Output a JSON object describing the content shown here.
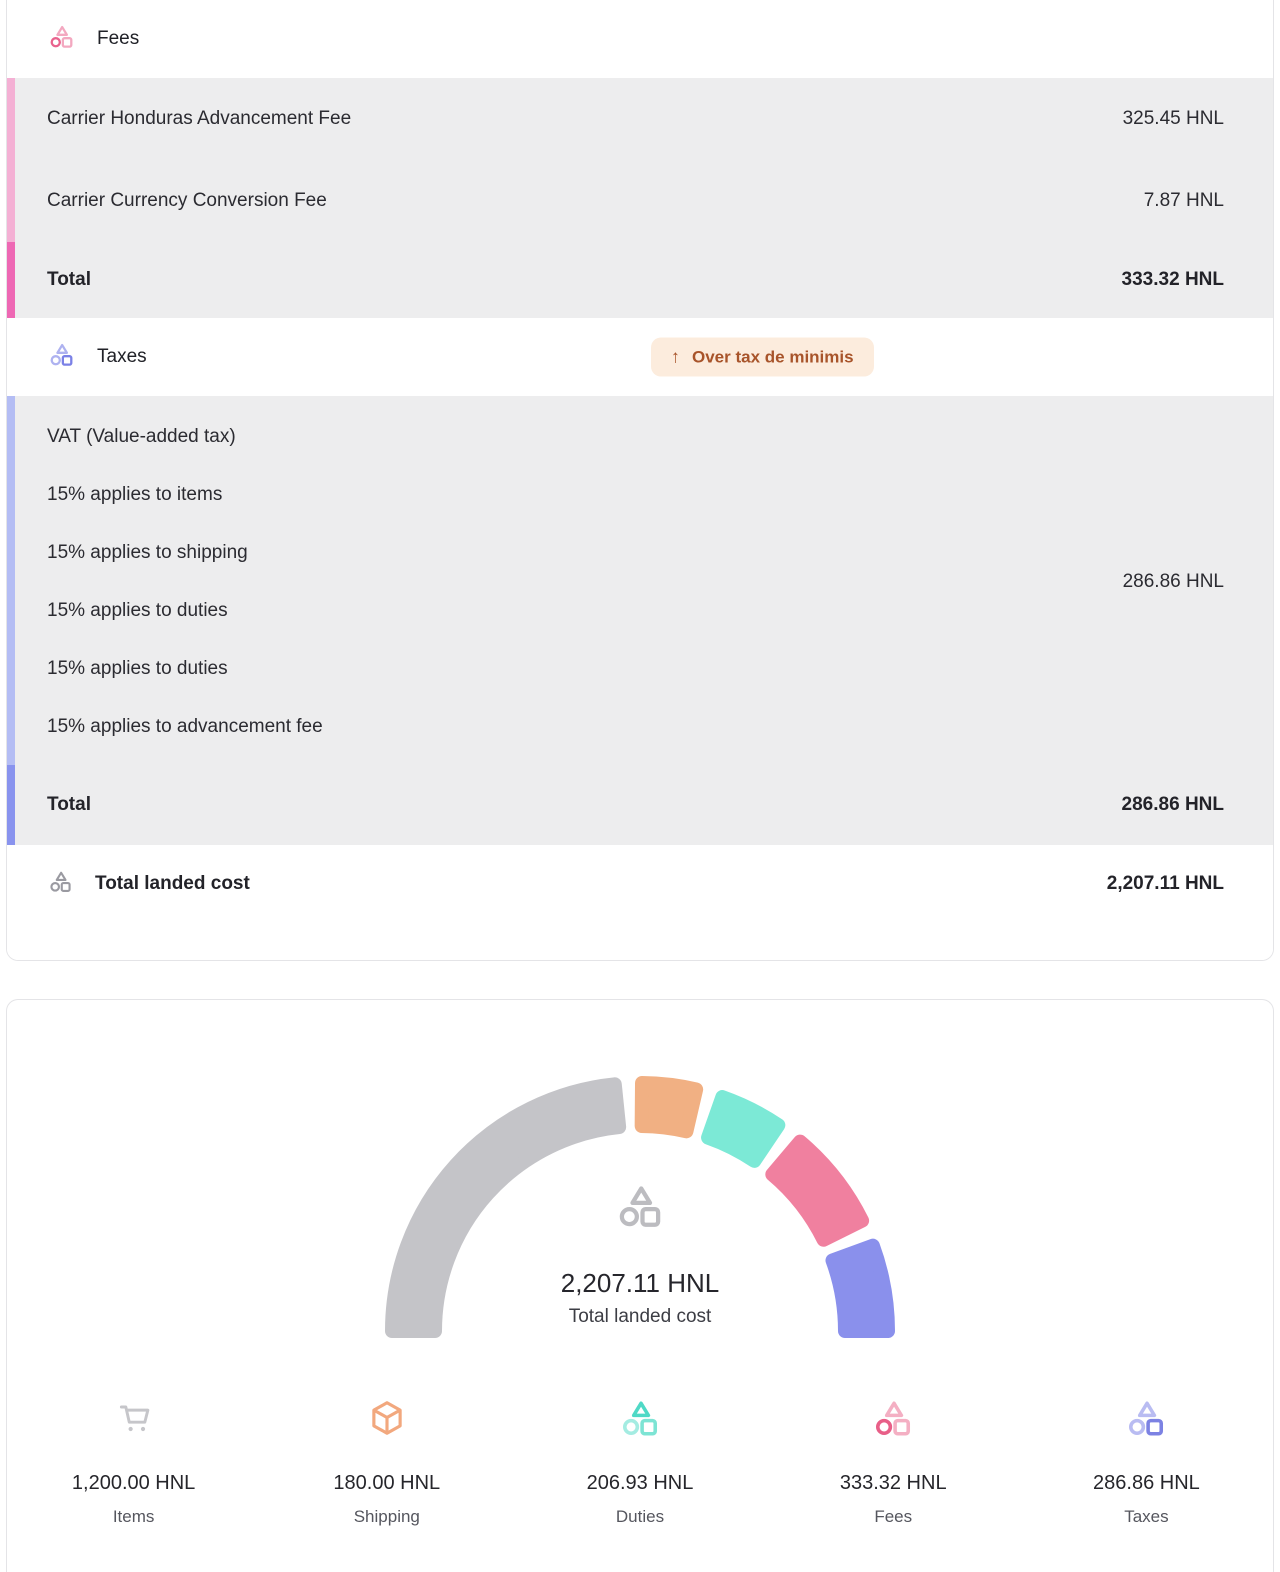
{
  "fees_section": {
    "title": "Fees",
    "rows": [
      {
        "label": "Carrier Honduras Advancement Fee",
        "value": "325.45 HNL"
      },
      {
        "label": "Carrier Currency Conversion Fee",
        "value": "7.87 HNL"
      }
    ],
    "total_label": "Total",
    "total_value": "333.32 HNL"
  },
  "taxes_section": {
    "title": "Taxes",
    "badge": {
      "icon": "arrow-up",
      "arrow_glyph": "↑",
      "label": "Over tax de minimis"
    },
    "detail_lines": [
      "VAT (Value-added tax)",
      "15% applies to items",
      "15% applies to shipping",
      "15% applies to duties",
      "15% applies to duties",
      "15% applies to advancement fee"
    ],
    "detail_value": "286.86 HNL",
    "total_label": "Total",
    "total_value": "286.86 HNL"
  },
  "landed_section": {
    "label": "Total landed cost",
    "value": "2,207.11 HNL"
  },
  "chart_data": {
    "type": "pie",
    "subtype": "half-donut-gauge",
    "center_value": "2,207.11 HNL",
    "center_label": "Total landed cost",
    "total": 2207.11,
    "legend_position": "bottom",
    "segments": [
      {
        "name": "Items",
        "value": 1200.0,
        "display": "1,200.00 HNL",
        "color": "#c4c4c8",
        "icon": "cart"
      },
      {
        "name": "Shipping",
        "value": 180.0,
        "display": "180.00 HNL",
        "color": "#f1b083",
        "icon": "package"
      },
      {
        "name": "Duties",
        "value": 206.93,
        "display": "206.93 HNL",
        "color": "#7ce9d6",
        "icon": "logo-duties"
      },
      {
        "name": "Fees",
        "value": 333.32,
        "display": "333.32 HNL",
        "color": "#f0809f",
        "icon": "logo-fees"
      },
      {
        "name": "Taxes",
        "value": 286.86,
        "display": "286.86 HNL",
        "color": "#8a90ec",
        "icon": "logo-taxes"
      }
    ]
  },
  "colors": {
    "row_bg": "#ededee",
    "border_pink_light": "#f4b0d4",
    "border_pink_dark": "#ee68b4",
    "border_purple_light": "#b4bdf4",
    "border_purple_dark": "#8993ee",
    "badge_bg": "#fcecdd",
    "badge_text": "#a8542a",
    "legend_icon_cart": "#c6c6ca",
    "legend_icon_package": "#f2a87e",
    "center_icon_gray": "#bcbcc0"
  },
  "logo_palette": {
    "fees_header": {
      "triangle": "#f3a8c0",
      "circle": "#e9638e",
      "square": "#f3a8c0"
    },
    "taxes_header": {
      "triangle": "#aeb2f0",
      "circle": "#aeb2f0",
      "square": "#7b81e6"
    },
    "landed": {
      "triangle": "#9a9aa1",
      "circle": "#9a9aa1",
      "square": "#9a9aa1"
    },
    "gauge_center": {
      "triangle": "#bcbcc0",
      "circle": "#bcbcc0",
      "square": "#bcbcc0"
    },
    "legend_duties": {
      "triangle": "#4fd9c6",
      "circle": "#a4ece2",
      "square": "#7de4d4"
    },
    "legend_fees": {
      "triangle": "#f4afc3",
      "circle": "#e85f88",
      "square": "#f4afc3"
    },
    "legend_taxes": {
      "triangle": "#b9bcf2",
      "circle": "#b9bcf2",
      "square": "#7c82e3"
    }
  }
}
